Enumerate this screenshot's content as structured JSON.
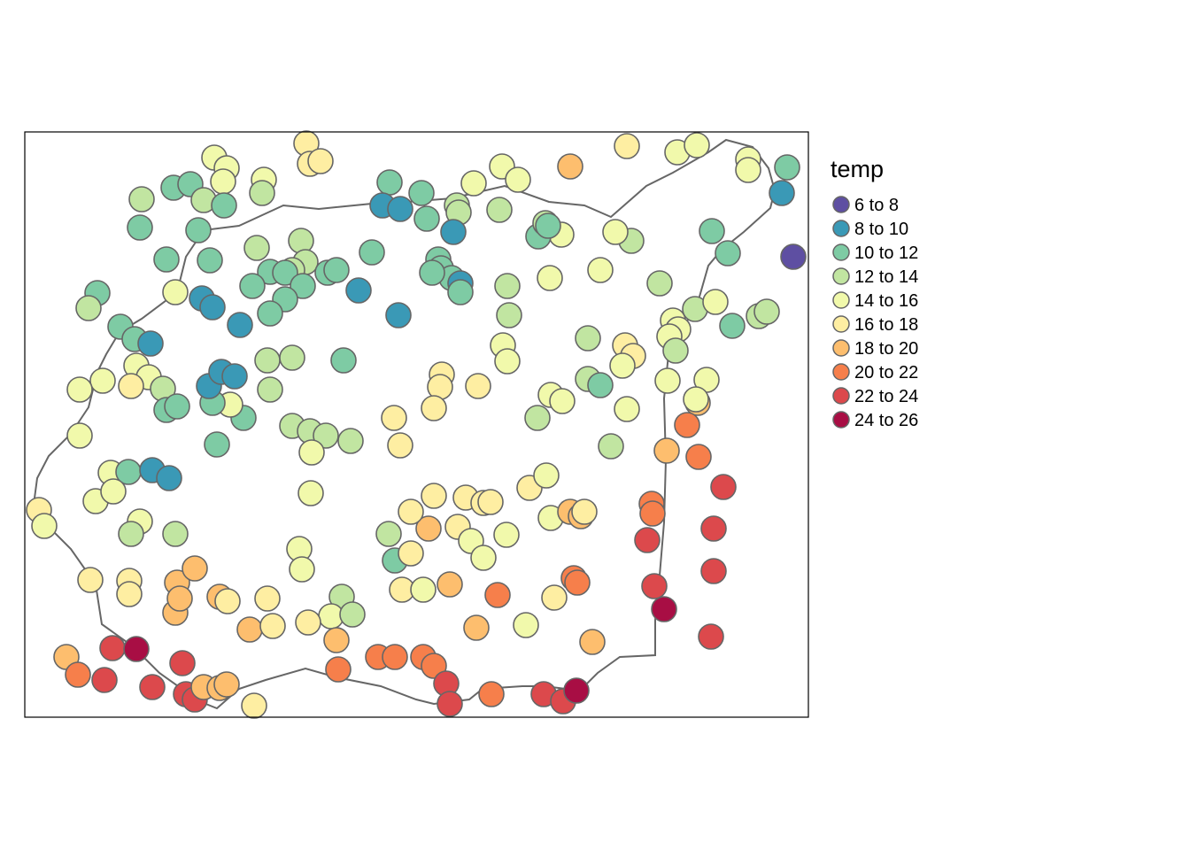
{
  "legend": {
    "title": "temp",
    "classes": [
      {
        "label": "6 to 8",
        "color": "#5E4FA2"
      },
      {
        "label": "8 to 10",
        "color": "#3A99B6"
      },
      {
        "label": "10 to 12",
        "color": "#7ECBA4"
      },
      {
        "label": "12 to 14",
        "color": "#C1E5A1"
      },
      {
        "label": "14 to 16",
        "color": "#F1F9AB"
      },
      {
        "label": "16 to 18",
        "color": "#FEEEA2"
      },
      {
        "label": "18 to 20",
        "color": "#FDBE6E"
      },
      {
        "label": "20 to 22",
        "color": "#F67F4B"
      },
      {
        "label": "22 to 24",
        "color": "#DC494C"
      },
      {
        "label": "24 to 26",
        "color": "#A80E44"
      }
    ]
  },
  "style": {
    "outline_color": "#666666",
    "frame_color": "#000000",
    "background": "#FFFFFF"
  }
}
